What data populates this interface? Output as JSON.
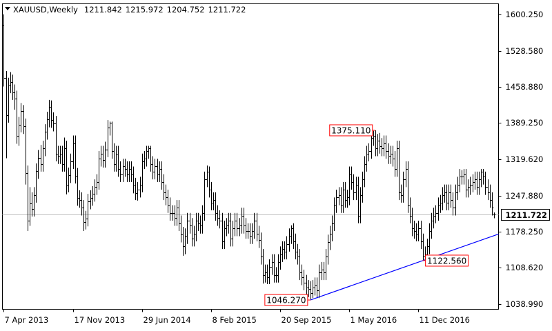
{
  "chart_data": {
    "type": "ohlc",
    "title": "XAUUSD,Weekly",
    "color": "#000000",
    "grid": false,
    "xlim": [
      -0.6,
      229.1
    ],
    "xticks": [
      {
        "value": 0,
        "label": "7 Apr 2013"
      },
      {
        "value": 32,
        "label": "17 Nov 2013"
      },
      {
        "value": 64,
        "label": "29 Jun 2014"
      },
      {
        "value": 96,
        "label": "8 Feb 2015"
      },
      {
        "value": 128,
        "label": "20 Sep 2015"
      },
      {
        "value": 160,
        "label": "1 May 2016"
      },
      {
        "value": 192,
        "label": "11 Dec 2016"
      }
    ],
    "ylim": [
      1028.3,
      1620.3
    ],
    "yticks": [
      {
        "value": 1600.25,
        "label": "1600.250"
      },
      {
        "value": 1528.58,
        "label": "1528.580"
      },
      {
        "value": 1458.88,
        "label": "1458.880"
      },
      {
        "value": 1389.25,
        "label": "1389.250"
      },
      {
        "value": 1319.62,
        "label": "1319.620"
      },
      {
        "value": 1247.88,
        "label": "1247.880"
      },
      {
        "value": 1178.25,
        "label": "1178.250"
      },
      {
        "value": 1108.62,
        "label": "1108.620"
      },
      {
        "value": 1038.99,
        "label": "1038.990"
      }
    ],
    "open": [
      1580,
      1476,
      1405,
      1462,
      1468,
      1449,
      1437,
      1364,
      1386,
      1413,
      1383,
      1292,
      1200,
      1234,
      1223,
      1250,
      1296,
      1322,
      1310,
      1340,
      1372,
      1396,
      1420,
      1395,
      1388,
      1330,
      1325,
      1330,
      1310,
      1340,
      1270,
      1288,
      1315,
      1350,
      1287,
      1244,
      1240,
      1225,
      1198,
      1204,
      1237,
      1244,
      1252,
      1265,
      1275,
      1320,
      1330,
      1318,
      1338,
      1380,
      1390,
      1335,
      1310,
      1330,
      1300,
      1290,
      1305,
      1300,
      1290,
      1300,
      1290,
      1268,
      1254,
      1260,
      1270,
      1315,
      1320,
      1335,
      1340,
      1310,
      1295,
      1305,
      1290,
      1300,
      1275,
      1255,
      1245,
      1230,
      1215,
      1215,
      1205,
      1225,
      1195,
      1173,
      1150,
      1170,
      1200,
      1190,
      1165,
      1175,
      1200,
      1195,
      1190,
      1215,
      1280,
      1295,
      1260,
      1235,
      1240,
      1215,
      1205,
      1200,
      1160,
      1185,
      1190,
      1200,
      1165,
      1185,
      1200,
      1185,
      1190,
      1210,
      1190,
      1180,
      1180,
      1170,
      1180,
      1200,
      1175,
      1162,
      1130,
      1095,
      1100,
      1090,
      1110,
      1120,
      1095,
      1095,
      1120,
      1135,
      1145,
      1140,
      1155,
      1170,
      1185,
      1160,
      1140,
      1130,
      1100,
      1090,
      1080,
      1070,
      1068,
      1060,
      1070,
      1075,
      1065,
      1100,
      1105,
      1100,
      1130,
      1158,
      1175,
      1195,
      1230,
      1245,
      1250,
      1230,
      1260,
      1240,
      1245,
      1290,
      1275,
      1255,
      1270,
      1210,
      1250,
      1280,
      1310,
      1330,
      1335,
      1360,
      1365,
      1340,
      1355,
      1345,
      1340,
      1350,
      1335,
      1325,
      1330,
      1320,
      1300,
      1340,
      1255,
      1250,
      1280,
      1300,
      1230,
      1210,
      1185,
      1180,
      1175,
      1185,
      1160,
      1130,
      1135,
      1150,
      1180,
      1200,
      1210,
      1215,
      1230,
      1235,
      1250,
      1255,
      1235,
      1255,
      1240,
      1225,
      1255,
      1270,
      1285,
      1285,
      1290,
      1260,
      1265,
      1270,
      1275,
      1280,
      1265,
      1280,
      1295,
      1285,
      1265,
      1255,
      1240,
      1211.842
    ],
    "high": [
      1600,
      1490,
      1477,
      1488,
      1483,
      1464,
      1452,
      1401,
      1428,
      1424,
      1398,
      1307,
      1265,
      1255,
      1265,
      1311,
      1337,
      1347,
      1355,
      1387,
      1411,
      1434,
      1433,
      1410,
      1403,
      1345,
      1345,
      1345,
      1361,
      1355,
      1303,
      1330,
      1365,
      1365,
      1302,
      1259,
      1255,
      1240,
      1219,
      1252,
      1259,
      1267,
      1280,
      1290,
      1335,
      1345,
      1345,
      1353,
      1395,
      1392,
      1392,
      1350,
      1345,
      1345,
      1315,
      1320,
      1320,
      1315,
      1315,
      1315,
      1305,
      1283,
      1275,
      1285,
      1330,
      1335,
      1345,
      1345,
      1345,
      1325,
      1320,
      1320,
      1315,
      1315,
      1290,
      1270,
      1260,
      1245,
      1230,
      1230,
      1240,
      1240,
      1210,
      1188,
      1185,
      1215,
      1215,
      1205,
      1190,
      1215,
      1215,
      1210,
      1230,
      1295,
      1307,
      1305,
      1275,
      1255,
      1255,
      1230,
      1220,
      1215,
      1200,
      1205,
      1215,
      1215,
      1200,
      1215,
      1215,
      1205,
      1225,
      1225,
      1205,
      1195,
      1195,
      1195,
      1215,
      1215,
      1190,
      1177,
      1145,
      1115,
      1115,
      1125,
      1135,
      1135,
      1110,
      1135,
      1150,
      1160,
      1160,
      1170,
      1185,
      1191,
      1195,
      1175,
      1155,
      1145,
      1115,
      1105,
      1095,
      1085,
      1083,
      1085,
      1090,
      1090,
      1115,
      1120,
      1120,
      1145,
      1173,
      1190,
      1210,
      1245,
      1260,
      1265,
      1265,
      1275,
      1275,
      1260,
      1305,
      1305,
      1290,
      1285,
      1285,
      1265,
      1295,
      1325,
      1345,
      1350,
      1372,
      1374,
      1375.11,
      1368,
      1370,
      1360,
      1365,
      1365,
      1350,
      1345,
      1345,
      1335,
      1355,
      1355,
      1270,
      1295,
      1315,
      1315,
      1245,
      1225,
      1200,
      1195,
      1200,
      1200,
      1175,
      1150,
      1165,
      1195,
      1215,
      1225,
      1230,
      1245,
      1250,
      1265,
      1270,
      1270,
      1270,
      1270,
      1255,
      1270,
      1285,
      1300,
      1298,
      1300,
      1300,
      1280,
      1285,
      1290,
      1295,
      1295,
      1295,
      1300,
      1300,
      1295,
      1280,
      1270,
      1255,
      1215.972
    ],
    "low": [
      1460,
      1321,
      1390,
      1447,
      1434,
      1415,
      1349,
      1345,
      1371,
      1368,
      1270,
      1180,
      1190,
      1208,
      1208,
      1235,
      1281,
      1295,
      1295,
      1325,
      1357,
      1381,
      1380,
      1373,
      1315,
      1310,
      1310,
      1295,
      1295,
      1251,
      1255,
      1273,
      1300,
      1272,
      1229,
      1225,
      1210,
      1180,
      1183,
      1189,
      1222,
      1229,
      1237,
      1250,
      1260,
      1305,
      1303,
      1303,
      1323,
      1365,
      1320,
      1295,
      1295,
      1285,
      1275,
      1275,
      1285,
      1275,
      1275,
      1275,
      1253,
      1240,
      1239,
      1245,
      1255,
      1300,
      1305,
      1320,
      1295,
      1280,
      1280,
      1275,
      1275,
      1260,
      1240,
      1230,
      1215,
      1200,
      1200,
      1190,
      1190,
      1180,
      1158,
      1132,
      1135,
      1155,
      1175,
      1150,
      1150,
      1160,
      1180,
      1175,
      1175,
      1200,
      1265,
      1245,
      1220,
      1220,
      1200,
      1190,
      1185,
      1145,
      1145,
      1170,
      1175,
      1150,
      1150,
      1170,
      1170,
      1170,
      1175,
      1175,
      1165,
      1165,
      1155,
      1155,
      1165,
      1160,
      1147,
      1115,
      1078,
      1080,
      1077,
      1077,
      1095,
      1080,
      1080,
      1080,
      1105,
      1120,
      1125,
      1125,
      1140,
      1155,
      1145,
      1125,
      1115,
      1085,
      1075,
      1065,
      1055,
      1052,
      1046.27,
      1050,
      1055,
      1050,
      1050,
      1085,
      1085,
      1085,
      1115,
      1143,
      1160,
      1180,
      1215,
      1230,
      1215,
      1215,
      1225,
      1225,
      1230,
      1260,
      1240,
      1240,
      1195,
      1195,
      1235,
      1265,
      1295,
      1315,
      1320,
      1345,
      1325,
      1325,
      1330,
      1325,
      1325,
      1320,
      1310,
      1310,
      1305,
      1285,
      1285,
      1240,
      1235,
      1235,
      1265,
      1215,
      1195,
      1170,
      1165,
      1160,
      1160,
      1145,
      1122.56,
      1125,
      1128,
      1135,
      1165,
      1185,
      1195,
      1200,
      1215,
      1220,
      1235,
      1220,
      1220,
      1225,
      1210,
      1210,
      1240,
      1255,
      1270,
      1270,
      1245,
      1245,
      1250,
      1255,
      1260,
      1250,
      1250,
      1265,
      1270,
      1250,
      1240,
      1225,
      1210,
      1204.752
    ],
    "close": [
      1476,
      1405,
      1462,
      1468,
      1449,
      1437,
      1364,
      1386,
      1413,
      1383,
      1292,
      1200,
      1234,
      1223,
      1250,
      1296,
      1322,
      1310,
      1340,
      1372,
      1396,
      1420,
      1395,
      1388,
      1330,
      1325,
      1330,
      1310,
      1340,
      1270,
      1288,
      1315,
      1350,
      1287,
      1244,
      1240,
      1225,
      1198,
      1204,
      1237,
      1244,
      1252,
      1265,
      1275,
      1320,
      1330,
      1318,
      1338,
      1380,
      1390,
      1335,
      1310,
      1330,
      1300,
      1290,
      1305,
      1300,
      1290,
      1300,
      1290,
      1268,
      1254,
      1260,
      1270,
      1315,
      1320,
      1335,
      1340,
      1310,
      1295,
      1305,
      1290,
      1300,
      1275,
      1255,
      1245,
      1230,
      1215,
      1215,
      1205,
      1225,
      1195,
      1173,
      1150,
      1170,
      1200,
      1190,
      1165,
      1175,
      1200,
      1195,
      1190,
      1215,
      1280,
      1295,
      1260,
      1235,
      1240,
      1215,
      1205,
      1200,
      1160,
      1185,
      1190,
      1200,
      1165,
      1185,
      1200,
      1185,
      1190,
      1210,
      1190,
      1180,
      1180,
      1170,
      1180,
      1200,
      1175,
      1162,
      1130,
      1095,
      1100,
      1090,
      1110,
      1120,
      1095,
      1095,
      1120,
      1135,
      1145,
      1140,
      1155,
      1170,
      1185,
      1160,
      1140,
      1130,
      1100,
      1090,
      1080,
      1070,
      1068,
      1060,
      1070,
      1075,
      1065,
      1100,
      1105,
      1100,
      1130,
      1158,
      1175,
      1195,
      1230,
      1245,
      1250,
      1230,
      1260,
      1240,
      1245,
      1290,
      1275,
      1255,
      1270,
      1210,
      1250,
      1280,
      1310,
      1330,
      1335,
      1360,
      1365,
      1340,
      1355,
      1345,
      1340,
      1350,
      1335,
      1325,
      1330,
      1320,
      1300,
      1340,
      1255,
      1250,
      1280,
      1300,
      1230,
      1210,
      1185,
      1180,
      1175,
      1185,
      1160,
      1130,
      1135,
      1150,
      1180,
      1200,
      1210,
      1215,
      1230,
      1235,
      1250,
      1255,
      1235,
      1255,
      1240,
      1225,
      1255,
      1270,
      1285,
      1285,
      1290,
      1260,
      1265,
      1270,
      1275,
      1280,
      1265,
      1280,
      1295,
      1285,
      1265,
      1255,
      1240,
      1225,
      1211.722
    ],
    "trendline": {
      "x": [
        142,
        194
      ],
      "y": [
        1046.27,
        1122.56
      ],
      "color": "#0000ff"
    },
    "annotations": [
      {
        "value": 1375.11,
        "label": "1375.110",
        "color": "#ff0000"
      },
      {
        "value": 1046.27,
        "label": "1046.270",
        "color": "#ff0000"
      },
      {
        "value": 1122.56,
        "label": "1122.560",
        "color": "#ff0000"
      }
    ]
  }
}
